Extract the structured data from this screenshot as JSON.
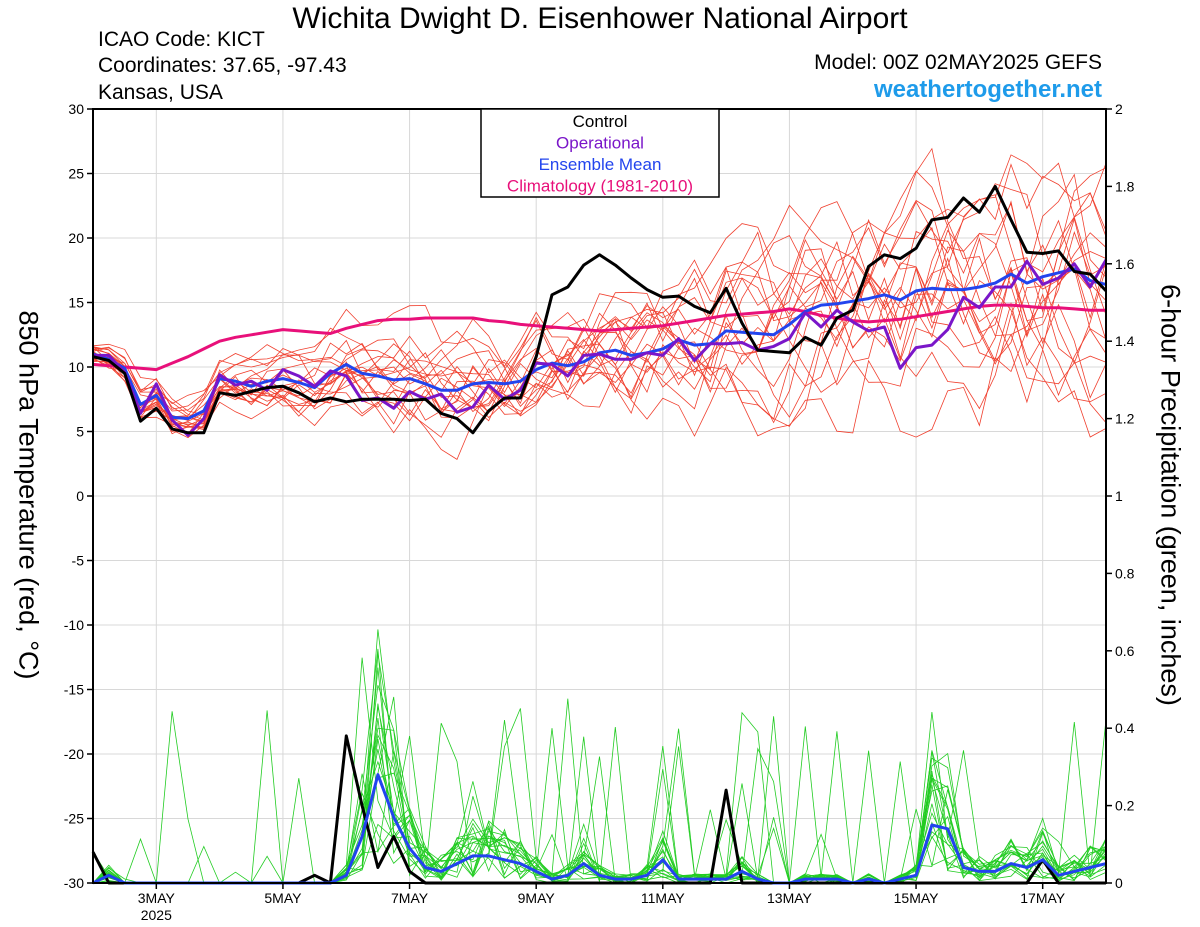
{
  "header": {
    "title": "Wichita Dwight D. Eisenhower National Airport",
    "icao": "ICAO Code: KICT",
    "coords": "Coordinates: 37.65, -97.43",
    "region": "Kansas, USA",
    "model": "Model: 00Z 02MAY2025 GEFS",
    "site": "weathertogether.net"
  },
  "colors": {
    "control": "#000000",
    "operational": "#7a16c9",
    "mean": "#2244ee",
    "climo": "#e8107a",
    "members_temp": "#f0402f",
    "members_precip": "#22cc22",
    "site": "#1e9bea"
  },
  "chart_data": {
    "type": "line",
    "title": "Wichita Dwight D. Eisenhower National Airport",
    "xlabel": "",
    "ylabel": "850 hPa Temperature (red, °C)",
    "y2label": "6-hour Precipitation (green, inches)",
    "x_range": [
      0,
      64
    ],
    "x_unit": "6-hour step from 00Z 02MAY2025",
    "x_ticks": [
      {
        "x": 4,
        "label": "3MAY"
      },
      {
        "x": 12,
        "label": "5MAY"
      },
      {
        "x": 20,
        "label": "7MAY"
      },
      {
        "x": 28,
        "label": "9MAY"
      },
      {
        "x": 36,
        "label": "11MAY"
      },
      {
        "x": 44,
        "label": "13MAY"
      },
      {
        "x": 52,
        "label": "15MAY"
      },
      {
        "x": 60,
        "label": "17MAY"
      }
    ],
    "year_label": "2025",
    "ylim": [
      -30,
      30
    ],
    "y_ticks": [
      30,
      25,
      20,
      15,
      10,
      5,
      0,
      -5,
      -10,
      -15,
      -20,
      -25,
      -30
    ],
    "y2lim": [
      0,
      2
    ],
    "y2_ticks": [
      2,
      1.8,
      1.6,
      1.4,
      1.2,
      1,
      0.8,
      0.6,
      0.4,
      0.2,
      0
    ],
    "legend": [
      "Control",
      "Operational",
      "Ensemble Mean",
      "Climatology (1981-2010)"
    ],
    "legend_position": "top-center",
    "grid": true,
    "series": [
      {
        "name": "Control",
        "axis": "temp",
        "color": "#000000",
        "width": 3,
        "values": [
          10.8,
          10.5,
          9.5,
          5.8,
          6.8,
          5.2,
          4.9,
          4.9,
          8,
          7.8,
          8.1,
          8.4,
          8.5,
          8,
          7.3,
          7.6,
          7.3,
          7.5,
          7.5,
          7.5,
          7.4,
          7.5,
          6.4,
          6,
          4.9,
          6.6,
          7.6,
          7.6,
          10.8,
          15.6,
          16.2,
          17.9,
          18.7,
          17.9,
          16.9,
          16,
          15.4,
          15.5,
          14.7,
          14.2,
          16.1,
          13.4,
          11.3,
          11.2,
          11.1,
          12.3,
          11.7,
          13.8,
          14.4,
          17.8,
          18.7,
          18.4,
          19.2,
          21.4,
          21.6,
          23.1,
          22,
          24,
          21.4,
          18.9,
          18.8,
          19,
          17.4,
          17.2,
          15.9
        ]
      },
      {
        "name": "Operational",
        "axis": "temp",
        "color": "#7a16c9",
        "width": 3,
        "values": [
          10.9,
          10.9,
          9.6,
          6.4,
          8.7,
          5.9,
          4.7,
          6,
          9.4,
          8.6,
          8.9,
          8.2,
          9.8,
          9.3,
          8.5,
          9.7,
          9.3,
          7.4,
          7.6,
          6.8,
          8.1,
          7.5,
          7.9,
          6.5,
          6.9,
          8.6,
          7.5,
          8.2,
          10.3,
          10.2,
          9.3,
          10.9,
          11,
          10.6,
          10.6,
          11.1,
          10.9,
          12.2,
          10.5,
          11.8,
          11.8,
          11.9,
          11.3,
          11.6,
          12.2,
          14.2,
          13.1,
          14.4,
          13.5,
          12.8,
          13.1,
          9.9,
          11.5,
          11.7,
          12.9,
          15.4,
          14.6,
          16.2,
          16.2,
          18.2,
          16.4,
          16.9,
          18,
          16.2,
          18.3
        ]
      },
      {
        "name": "Ensemble Mean",
        "axis": "temp",
        "color": "#2244ee",
        "width": 3,
        "values": [
          11,
          10.6,
          9.9,
          7.1,
          7.8,
          6.1,
          6,
          6.6,
          9.1,
          8.9,
          8.5,
          8.9,
          9.1,
          8.8,
          8.4,
          9.5,
          10.2,
          9.5,
          9.3,
          9,
          9.1,
          8.7,
          8.2,
          8.2,
          8.7,
          8.8,
          8.7,
          8.9,
          9.8,
          10.3,
          10.1,
          10.4,
          11.1,
          11.3,
          10.9,
          11.1,
          11.4,
          12.1,
          11.7,
          11.8,
          12.8,
          12.7,
          12.6,
          12.5,
          13.3,
          14.3,
          14.8,
          14.9,
          15.1,
          15.3,
          15.6,
          15.2,
          15.9,
          16.1,
          16,
          16,
          16.2,
          16.5,
          17.2,
          16.5,
          17,
          17.3,
          17.6,
          16.7,
          16.4
        ]
      },
      {
        "name": "Climatology (1981-2010)",
        "axis": "temp",
        "color": "#e8107a",
        "width": 3,
        "values": [
          10.2,
          10.1,
          10,
          9.9,
          9.8,
          10.3,
          10.8,
          11.4,
          12,
          12.3,
          12.5,
          12.7,
          12.9,
          12.8,
          12.7,
          12.6,
          13,
          13.3,
          13.6,
          13.7,
          13.7,
          13.8,
          13.8,
          13.8,
          13.8,
          13.6,
          13.5,
          13.3,
          13.2,
          13.1,
          13,
          12.9,
          12.8,
          12.9,
          13,
          13.1,
          13.2,
          13.4,
          13.6,
          13.8,
          14,
          14.1,
          14.2,
          14.3,
          14.5,
          14.3,
          14,
          13.8,
          13.6,
          13.5,
          13.6,
          13.7,
          13.9,
          14.1,
          14.3,
          14.5,
          14.7,
          14.8,
          14.8,
          14.7,
          14.6,
          14.6,
          14.5,
          14.4,
          14.4
        ]
      },
      {
        "name": "Control precipitation",
        "axis": "precip",
        "color": "#000000",
        "width": 3,
        "values": [
          0.08,
          0,
          0,
          0,
          0,
          0,
          0,
          0,
          0,
          0,
          0,
          0,
          0,
          0,
          0.02,
          0,
          0.38,
          0.2,
          0.04,
          0.12,
          0.03,
          0,
          0,
          0,
          0,
          0,
          0,
          0,
          0,
          0,
          0,
          0,
          0,
          0,
          0,
          0,
          0,
          0,
          0,
          0,
          0.24,
          0,
          0,
          0,
          0,
          0,
          0,
          0,
          0,
          0,
          0,
          0,
          0,
          0,
          0,
          0,
          0,
          0,
          0,
          0,
          0.06,
          0,
          0,
          0,
          0
        ]
      },
      {
        "name": "Mean precipitation",
        "axis": "precip",
        "color": "#2244ee",
        "width": 3,
        "values": [
          0,
          0.02,
          0,
          0,
          0,
          0,
          0,
          0,
          0,
          0,
          0,
          0,
          0,
          0,
          0,
          0,
          0.02,
          0.12,
          0.28,
          0.17,
          0.09,
          0.04,
          0.03,
          0.05,
          0.07,
          0.07,
          0.06,
          0.05,
          0.03,
          0.01,
          0.02,
          0.05,
          0.02,
          0.01,
          0.01,
          0.02,
          0.06,
          0.01,
          0.01,
          0.01,
          0.01,
          0.03,
          0.01,
          0,
          0,
          0.01,
          0.01,
          0.01,
          0,
          0.01,
          0,
          0.01,
          0.02,
          0.15,
          0.14,
          0.04,
          0.03,
          0.03,
          0.05,
          0.04,
          0.06,
          0.02,
          0.03,
          0.04,
          0.05
        ]
      }
    ]
  }
}
